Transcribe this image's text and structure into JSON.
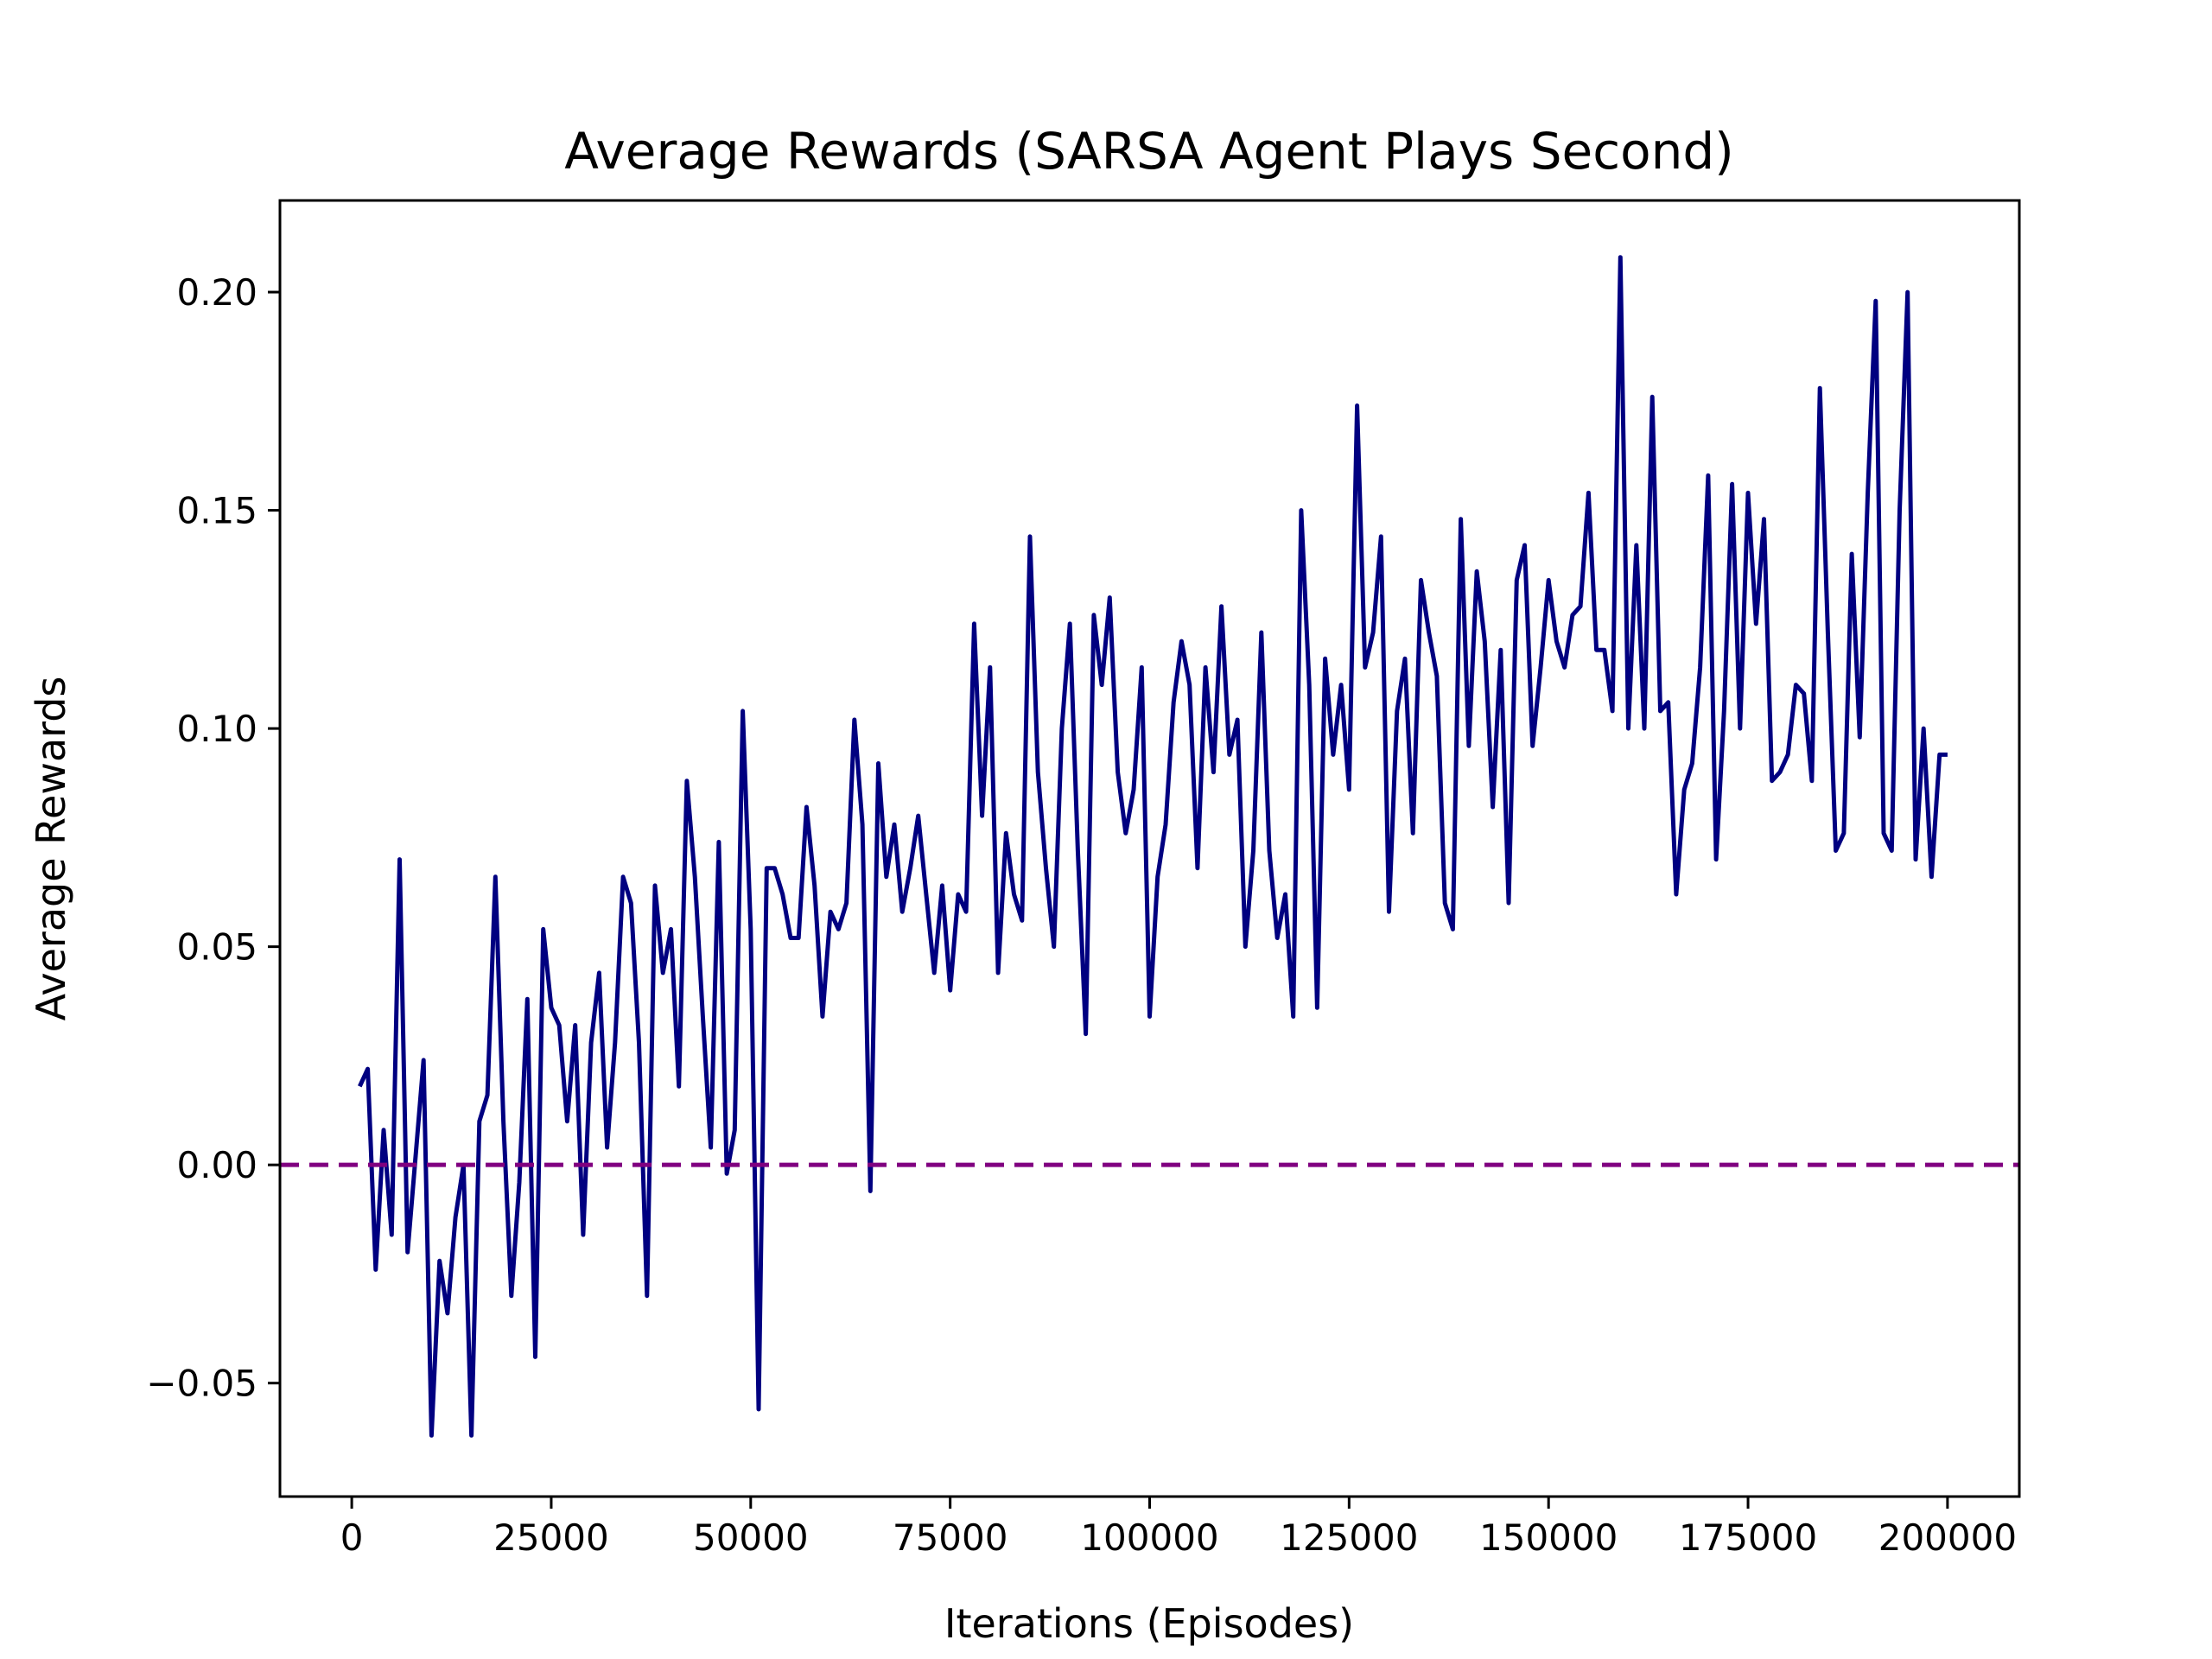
{
  "chart_data": {
    "type": "line",
    "title": "Average Rewards (SARSA Agent Plays Second)",
    "xlabel": "Iterations (Episodes)",
    "ylabel": "Average Rewards",
    "xlim": [
      -9000,
      209000
    ],
    "ylim": [
      -0.076,
      0.221
    ],
    "xticks": [
      0,
      25000,
      50000,
      75000,
      100000,
      125000,
      150000,
      175000,
      200000
    ],
    "xtick_labels": [
      "0",
      "25000",
      "50000",
      "75000",
      "100000",
      "125000",
      "150000",
      "175000",
      "200000"
    ],
    "yticks": [
      -0.05,
      0.0,
      0.05,
      0.1,
      0.15,
      0.2
    ],
    "ytick_labels": [
      "−0.05",
      "0.00",
      "0.05",
      "0.10",
      "0.15",
      "0.20"
    ],
    "grid": false,
    "series": [
      {
        "color": "#000080",
        "x": [
          1000,
          2000,
          3000,
          4000,
          5000,
          6000,
          7000,
          8000,
          9000,
          10000,
          11000,
          12000,
          13000,
          14000,
          15000,
          16000,
          17000,
          18000,
          19000,
          20000,
          21000,
          22000,
          23000,
          24000,
          25000,
          26000,
          27000,
          28000,
          29000,
          30000,
          31000,
          32000,
          33000,
          34000,
          35000,
          36000,
          37000,
          38000,
          39000,
          40000,
          41000,
          42000,
          43000,
          44000,
          45000,
          46000,
          47000,
          48000,
          49000,
          50000,
          51000,
          52000,
          53000,
          54000,
          55000,
          56000,
          57000,
          58000,
          59000,
          60000,
          61000,
          62000,
          63000,
          64000,
          65000,
          66000,
          67000,
          68000,
          69000,
          70000,
          71000,
          72000,
          73000,
          74000,
          75000,
          76000,
          77000,
          78000,
          79000,
          80000,
          81000,
          82000,
          83000,
          84000,
          85000,
          86000,
          87000,
          88000,
          89000,
          90000,
          91000,
          92000,
          93000,
          94000,
          95000,
          96000,
          97000,
          98000,
          99000,
          100000,
          101000,
          102000,
          103000,
          104000,
          105000,
          106000,
          107000,
          108000,
          109000,
          110000,
          111000,
          112000,
          113000,
          114000,
          115000,
          116000,
          117000,
          118000,
          119000,
          120000,
          121000,
          122000,
          123000,
          124000,
          125000,
          126000,
          127000,
          128000,
          129000,
          130000,
          131000,
          132000,
          133000,
          134000,
          135000,
          136000,
          137000,
          138000,
          139000,
          140000,
          141000,
          142000,
          143000,
          144000,
          145000,
          146000,
          147000,
          148000,
          149000,
          150000,
          151000,
          152000,
          153000,
          154000,
          155000,
          156000,
          157000,
          158000,
          159000,
          160000,
          161000,
          162000,
          163000,
          164000,
          165000,
          166000,
          167000,
          168000,
          169000,
          170000,
          171000,
          172000,
          173000,
          174000,
          175000,
          176000,
          177000,
          178000,
          179000,
          180000,
          181000,
          182000,
          183000,
          184000,
          185000,
          186000,
          187000,
          188000,
          189000,
          190000,
          191000,
          192000,
          193000,
          194000,
          195000,
          196000,
          197000,
          198000,
          199000,
          200000
        ],
        "y": [
          0.018,
          0.022,
          -0.024,
          0.008,
          -0.016,
          0.07,
          -0.02,
          0.002,
          0.024,
          -0.062,
          -0.022,
          -0.034,
          -0.012,
          0.0,
          -0.062,
          0.01,
          0.016,
          0.066,
          0.01,
          -0.03,
          -0.004,
          0.038,
          -0.044,
          0.054,
          0.036,
          0.032,
          0.01,
          0.032,
          -0.016,
          0.028,
          0.044,
          0.004,
          0.028,
          0.066,
          0.06,
          0.028,
          -0.03,
          0.064,
          0.044,
          0.054,
          0.018,
          0.088,
          0.066,
          0.034,
          0.004,
          0.074,
          -0.002,
          0.008,
          0.104,
          0.054,
          -0.056,
          0.068,
          0.068,
          0.062,
          0.052,
          0.052,
          0.082,
          0.064,
          0.034,
          0.058,
          0.054,
          0.06,
          0.102,
          0.078,
          -0.006,
          0.092,
          0.066,
          0.078,
          0.058,
          0.068,
          0.08,
          0.062,
          0.044,
          0.064,
          0.04,
          0.062,
          0.058,
          0.124,
          0.08,
          0.114,
          0.044,
          0.076,
          0.062,
          0.056,
          0.144,
          0.09,
          0.068,
          0.05,
          0.1,
          0.124,
          0.072,
          0.03,
          0.126,
          0.11,
          0.13,
          0.09,
          0.076,
          0.086,
          0.114,
          0.034,
          0.066,
          0.078,
          0.106,
          0.12,
          0.11,
          0.068,
          0.114,
          0.09,
          0.128,
          0.094,
          0.102,
          0.05,
          0.072,
          0.122,
          0.072,
          0.052,
          0.062,
          0.034,
          0.15,
          0.11,
          0.036,
          0.116,
          0.094,
          0.11,
          0.086,
          0.174,
          0.114,
          0.122,
          0.144,
          0.058,
          0.104,
          0.116,
          0.076,
          0.134,
          0.122,
          0.112,
          0.06,
          0.054,
          0.148,
          0.096,
          0.136,
          0.12,
          0.082,
          0.118,
          0.06,
          0.134,
          0.142,
          0.096,
          0.114,
          0.134,
          0.12,
          0.114,
          0.126,
          0.128,
          0.154,
          0.118,
          0.118,
          0.104,
          0.208,
          0.1,
          0.142,
          0.1,
          0.176,
          0.104,
          0.106,
          0.062,
          0.086,
          0.092,
          0.114,
          0.158,
          0.07,
          0.104,
          0.156,
          0.1,
          0.154,
          0.124,
          0.148,
          0.088,
          0.09,
          0.094,
          0.11,
          0.108,
          0.088,
          0.178,
          0.122,
          0.072,
          0.076,
          0.14,
          0.098,
          0.154,
          0.198,
          0.076,
          0.072,
          0.15,
          0.2,
          0.07,
          0.1,
          0.066,
          0.094,
          0.094
        ]
      }
    ],
    "reference_line": {
      "y": 0.0,
      "style": "dashed",
      "color": "#800080"
    }
  }
}
